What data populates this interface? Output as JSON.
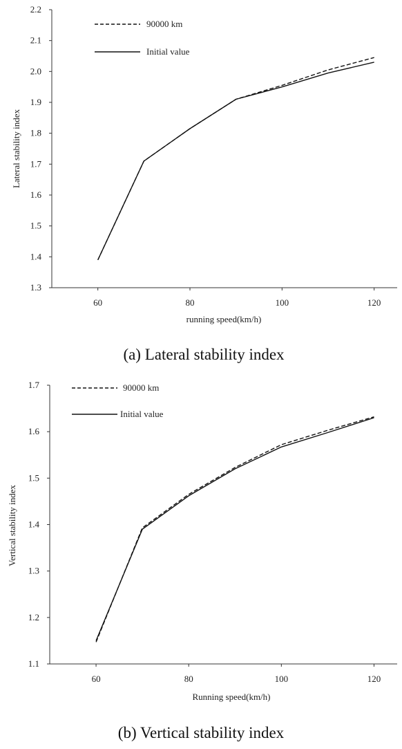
{
  "chart_data": [
    {
      "type": "line",
      "caption": "(a) Lateral stability index",
      "xlabel": "running speed(km/h)",
      "ylabel": "Lateral stability index",
      "x_ticks": [
        60,
        80,
        100,
        120
      ],
      "y_ticks": [
        "1.3",
        "1.4",
        "1.5",
        "1.6",
        "1.7",
        "1.8",
        "1.9",
        "2.0",
        "2.1",
        "2.2"
      ],
      "xlim": [
        50,
        125
      ],
      "ylim": [
        1.3,
        2.2
      ],
      "x": [
        60,
        70,
        80,
        90,
        100,
        110,
        120
      ],
      "series": [
        {
          "name": "90000 km",
          "style": "dashed",
          "values": [
            1.39,
            1.71,
            1.815,
            1.91,
            1.955,
            2.005,
            2.045
          ]
        },
        {
          "name": "Initial value",
          "style": "solid",
          "values": [
            1.39,
            1.71,
            1.815,
            1.91,
            1.95,
            1.995,
            2.03
          ]
        }
      ],
      "legend": "top-left",
      "grid": false
    },
    {
      "type": "line",
      "caption": "(b) Vertical stability index",
      "xlabel": "Running speed(km/h)",
      "ylabel": "Vertical stability index",
      "x_ticks": [
        60,
        80,
        100,
        120
      ],
      "y_ticks": [
        "1.1",
        "1.2",
        "1.3",
        "1.4",
        "1.5",
        "1.6",
        "1.7"
      ],
      "xlim": [
        50,
        125
      ],
      "ylim": [
        1.1,
        1.7
      ],
      "x": [
        60,
        70,
        80,
        90,
        100,
        110,
        120
      ],
      "series": [
        {
          "name": "90000 km",
          "style": "dashed",
          "values": [
            1.147,
            1.393,
            1.465,
            1.523,
            1.572,
            1.603,
            1.632
          ]
        },
        {
          "name": "Initial value",
          "style": "solid",
          "values": [
            1.15,
            1.39,
            1.462,
            1.52,
            1.567,
            1.598,
            1.63
          ]
        }
      ],
      "legend": "top-left",
      "grid": false
    }
  ]
}
